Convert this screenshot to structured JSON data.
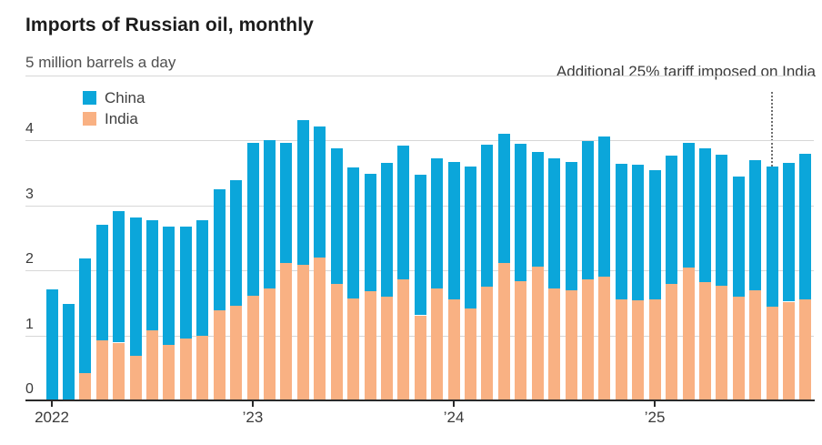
{
  "header": {
    "title": "Imports of Russian oil, monthly",
    "subtitle_value": "5",
    "subtitle_unit": "million barrels a day"
  },
  "annotation": {
    "text": "Additional 25% tariff imposed on India",
    "month_index": 43
  },
  "colors": {
    "china": "#0ba6da",
    "india": "#f9b183",
    "gridline": "#d7d7d7",
    "axis": "#2a2a2a"
  },
  "chart_data": {
    "type": "bar",
    "stacked": true,
    "title": "Imports of Russian oil, monthly",
    "ylabel": "million barrels a day",
    "ylim": [
      0,
      5
    ],
    "y_ticks": [
      0,
      1,
      2,
      3,
      4,
      5
    ],
    "grid": true,
    "legend_position": "top-left",
    "x": [
      "2022-01",
      "2022-02",
      "2022-03",
      "2022-04",
      "2022-05",
      "2022-06",
      "2022-07",
      "2022-08",
      "2022-09",
      "2022-10",
      "2022-11",
      "2022-12",
      "2023-01",
      "2023-02",
      "2023-03",
      "2023-04",
      "2023-05",
      "2023-06",
      "2023-07",
      "2023-08",
      "2023-09",
      "2023-10",
      "2023-11",
      "2023-12",
      "2024-01",
      "2024-02",
      "2024-03",
      "2024-04",
      "2024-05",
      "2024-06",
      "2024-07",
      "2024-08",
      "2024-09",
      "2024-10",
      "2024-11",
      "2024-12",
      "2025-01",
      "2025-02",
      "2025-03",
      "2025-04",
      "2025-05",
      "2025-06",
      "2025-07",
      "2025-08",
      "2025-09",
      "2025-10"
    ],
    "x_ticks": [
      {
        "label": "2022",
        "month_index": 0
      },
      {
        "label": "’23",
        "month_index": 12
      },
      {
        "label": "’24",
        "month_index": 24
      },
      {
        "label": "’25",
        "month_index": 36
      }
    ],
    "series": [
      {
        "name": "India",
        "color": "#f9b183",
        "values": [
          0,
          0,
          0.42,
          0.93,
          0.89,
          0.68,
          1.08,
          0.85,
          0.95,
          1.0,
          1.39,
          1.46,
          1.61,
          1.72,
          2.11,
          2.09,
          2.2,
          1.79,
          1.57,
          1.68,
          1.6,
          1.86,
          1.31,
          1.72,
          1.56,
          1.42,
          1.75,
          2.12,
          1.83,
          2.06,
          1.72,
          1.7,
          1.86,
          1.91,
          1.55,
          1.54,
          1.56,
          1.79,
          2.05,
          1.82,
          1.76,
          1.6,
          1.69,
          1.45,
          1.52,
          1.56
        ]
      },
      {
        "name": "China",
        "color": "#0ba6da",
        "values": [
          1.71,
          1.48,
          1.76,
          1.77,
          2.02,
          2.13,
          1.69,
          1.83,
          1.73,
          1.78,
          1.86,
          1.93,
          2.36,
          2.28,
          1.85,
          2.22,
          2.02,
          2.09,
          2.02,
          1.81,
          2.06,
          2.06,
          2.16,
          2.0,
          2.11,
          2.18,
          2.18,
          1.99,
          2.12,
          1.77,
          2.01,
          1.97,
          2.13,
          2.15,
          2.09,
          2.09,
          1.99,
          1.98,
          1.92,
          2.06,
          2.02,
          1.85,
          2.01,
          2.15,
          2.14,
          2.24
        ]
      }
    ]
  }
}
